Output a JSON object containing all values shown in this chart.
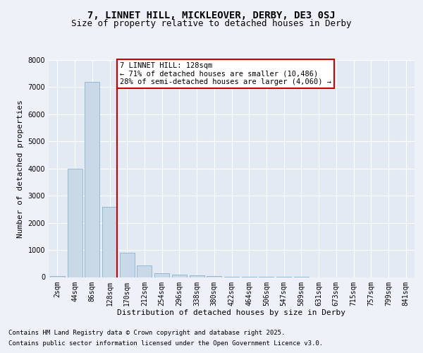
{
  "title1": "7, LINNET HILL, MICKLEOVER, DERBY, DE3 0SJ",
  "title2": "Size of property relative to detached houses in Derby",
  "xlabel": "Distribution of detached houses by size in Derby",
  "ylabel": "Number of detached properties",
  "categories": [
    "2sqm",
    "44sqm",
    "86sqm",
    "128sqm",
    "170sqm",
    "212sqm",
    "254sqm",
    "296sqm",
    "338sqm",
    "380sqm",
    "422sqm",
    "464sqm",
    "506sqm",
    "547sqm",
    "589sqm",
    "631sqm",
    "673sqm",
    "715sqm",
    "757sqm",
    "799sqm",
    "841sqm"
  ],
  "values": [
    50,
    4000,
    7200,
    2600,
    900,
    420,
    155,
    100,
    55,
    50,
    10,
    5,
    2,
    1,
    1,
    0,
    0,
    0,
    0,
    0,
    0
  ],
  "bar_color": "#c9d9e8",
  "bar_edge_color": "#7aaac8",
  "red_line_index": 3,
  "annotation_text": "7 LINNET HILL: 128sqm\n← 71% of detached houses are smaller (10,486)\n28% of semi-detached houses are larger (4,060) →",
  "annotation_box_color": "#ffffff",
  "annotation_box_edge": "#cc0000",
  "ylim": [
    0,
    8000
  ],
  "yticks": [
    0,
    1000,
    2000,
    3000,
    4000,
    5000,
    6000,
    7000,
    8000
  ],
  "bg_color": "#eef2f8",
  "plot_bg_color": "#e4eaf4",
  "grid_color": "#ffffff",
  "footer_line1": "Contains HM Land Registry data © Crown copyright and database right 2025.",
  "footer_line2": "Contains public sector information licensed under the Open Government Licence v3.0.",
  "title_fontsize": 10,
  "subtitle_fontsize": 9,
  "axis_label_fontsize": 8,
  "tick_fontsize": 7,
  "annotation_fontsize": 7.5,
  "footer_fontsize": 6.5
}
